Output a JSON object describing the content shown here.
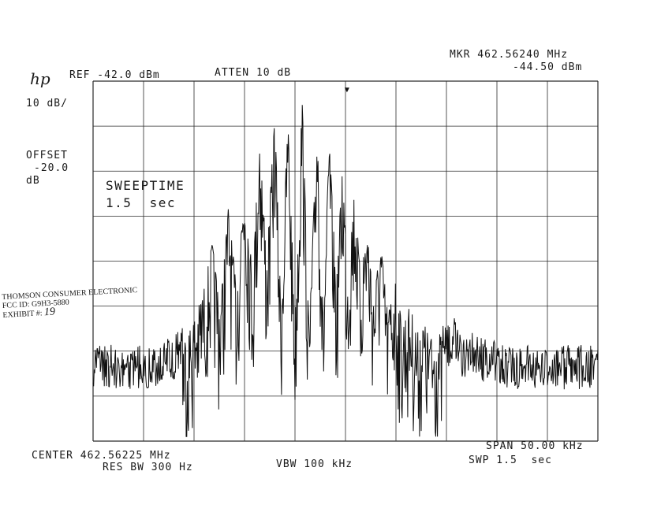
{
  "header": {
    "logo": "hp",
    "ref": "REF -42.0 dBm",
    "atten": "ATTEN 10 dB",
    "marker_freq": "MKR 462.56240 MHz",
    "marker_level": "-44.50 dBm"
  },
  "left_panel": {
    "scale": "10 dB/",
    "offset_label": "OFFSET",
    "offset_value": "-20.0",
    "offset_unit": "dB"
  },
  "annotation": {
    "line1": "SWEEPTIME",
    "line2": "1.5  sec"
  },
  "stamp": {
    "line1": "THOMSON CONSUMER ELECTRONIC",
    "line2": "FCC ID:  G9H3-5880",
    "line3": "EXHIBIT #:",
    "exhibit_number": "19"
  },
  "footer": {
    "center": "CENTER 462.56225 MHz",
    "res_bw": "RES BW 300 Hz",
    "vbw": "VBW 100 kHz",
    "span": "SPAN 50.00 kHz",
    "sweep": "SWP 1.5  sec"
  },
  "chart_data": {
    "type": "line",
    "title": "",
    "xlabel": "",
    "ylabel": "",
    "x_center_mhz": 462.56225,
    "x_span_khz": 50.0,
    "xlim_khz": [
      -25,
      25
    ],
    "ylim_dbm": [
      -122,
      -42
    ],
    "grid": true,
    "grid_divisions": {
      "x": 10,
      "y": 8
    },
    "noise_floor_dbm": -106,
    "marker": {
      "freq_mhz": 462.5624,
      "level_dbm": -44.5
    },
    "series": [
      {
        "x": [
          -25,
          -19,
          -18,
          -17,
          -16.4,
          -15.6,
          -14.8,
          -14,
          -13.2,
          -12.4,
          -11.6,
          -10.8,
          -10,
          -9.2,
          -8.5,
          -7.8,
          -7,
          -6.4,
          -5.7,
          -5,
          -4.3,
          -3.6,
          -2.8,
          -2.2,
          -1.6,
          -0.9,
          -0.3,
          0.2,
          0.9,
          1.5,
          2.1,
          2.8,
          3.5,
          4.2,
          4.9,
          5.6,
          6.4,
          7.1,
          7.8,
          8.5,
          9.3,
          10,
          10.8,
          11.5,
          12.3,
          13,
          14,
          15,
          16,
          18,
          25
        ],
        "y": [
          -106,
          -106,
          -104,
          -104,
          -101,
          -98,
          -94,
          -88,
          -78,
          -92,
          -70,
          -88,
          -62,
          -86,
          -53,
          -82,
          -49,
          -92,
          -50,
          -96,
          -45,
          -98,
          -50,
          -95,
          -55,
          -88,
          -60,
          -84,
          -66,
          -86,
          -73,
          -90,
          -78,
          -94,
          -86,
          -96,
          -92,
          -98,
          -96,
          -100,
          -98,
          -102,
          -100,
          -104,
          -103,
          -104,
          -105,
          -104,
          -106,
          -106,
          -106
        ]
      }
    ]
  }
}
